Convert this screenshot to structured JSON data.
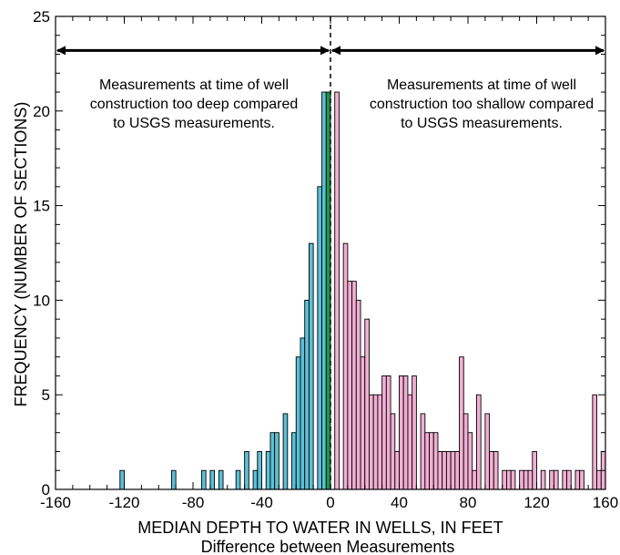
{
  "chart_data": {
    "type": "bar",
    "title": "",
    "xlabel": "MEDIAN DEPTH TO WATER IN WELLS, IN FEET",
    "xsublabel": "Difference between Measurements",
    "ylabel": "FREQUENCY (NUMBER OF SECTIONS)",
    "xlim": [
      -160,
      160
    ],
    "ylim": [
      0,
      25
    ],
    "xticks": [
      -160,
      -120,
      -80,
      -40,
      0,
      40,
      80,
      120,
      160
    ],
    "yticks": [
      0,
      5,
      10,
      15,
      20,
      25
    ],
    "bin_width": 2.5,
    "bar_edge_color": "#000000",
    "series": [
      {
        "color": "#5bc0d6",
        "bars": [
          {
            "x": -120,
            "y": 1
          },
          {
            "x": -90,
            "y": 1
          },
          {
            "x": -72.5,
            "y": 1
          },
          {
            "x": -67.5,
            "y": 1
          },
          {
            "x": -62.5,
            "y": 1
          },
          {
            "x": -52.5,
            "y": 1
          },
          {
            "x": -47.5,
            "y": 2
          },
          {
            "x": -42.5,
            "y": 1
          },
          {
            "x": -40,
            "y": 2
          },
          {
            "x": -35,
            "y": 2
          },
          {
            "x": -32.5,
            "y": 3
          },
          {
            "x": -30,
            "y": 3
          },
          {
            "x": -25,
            "y": 4
          },
          {
            "x": -20,
            "y": 3
          },
          {
            "x": -17.5,
            "y": 7
          },
          {
            "x": -15,
            "y": 8
          },
          {
            "x": -12.5,
            "y": 10
          },
          {
            "x": -10,
            "y": 13
          },
          {
            "x": -5,
            "y": 16
          },
          {
            "x": -2.5,
            "y": 21
          }
        ]
      },
      {
        "color": "#1a9a4a",
        "bars": [
          {
            "x": 0,
            "y": 21
          }
        ]
      },
      {
        "color": "#f2afd3",
        "bars": [
          {
            "x": 5,
            "y": 21
          },
          {
            "x": 10,
            "y": 13
          },
          {
            "x": 12.5,
            "y": 11
          },
          {
            "x": 15,
            "y": 11
          },
          {
            "x": 17.5,
            "y": 10
          },
          {
            "x": 20,
            "y": 7
          },
          {
            "x": 22.5,
            "y": 9
          },
          {
            "x": 25,
            "y": 5
          },
          {
            "x": 27.5,
            "y": 5
          },
          {
            "x": 30,
            "y": 5
          },
          {
            "x": 32.5,
            "y": 6
          },
          {
            "x": 35,
            "y": 6
          },
          {
            "x": 37.5,
            "y": 4
          },
          {
            "x": 40,
            "y": 2
          },
          {
            "x": 42.5,
            "y": 6
          },
          {
            "x": 45,
            "y": 6
          },
          {
            "x": 47.5,
            "y": 5
          },
          {
            "x": 50,
            "y": 6
          },
          {
            "x": 55,
            "y": 4
          },
          {
            "x": 57.5,
            "y": 3
          },
          {
            "x": 60,
            "y": 3
          },
          {
            "x": 62.5,
            "y": 3
          },
          {
            "x": 65,
            "y": 2
          },
          {
            "x": 67.5,
            "y": 2
          },
          {
            "x": 70,
            "y": 2
          },
          {
            "x": 72.5,
            "y": 2
          },
          {
            "x": 75,
            "y": 2
          },
          {
            "x": 77.5,
            "y": 7
          },
          {
            "x": 80,
            "y": 4
          },
          {
            "x": 82.5,
            "y": 3
          },
          {
            "x": 85,
            "y": 1
          },
          {
            "x": 87.5,
            "y": 5
          },
          {
            "x": 92.5,
            "y": 4
          },
          {
            "x": 95,
            "y": 2
          },
          {
            "x": 97.5,
            "y": 2
          },
          {
            "x": 102.5,
            "y": 1
          },
          {
            "x": 105,
            "y": 1
          },
          {
            "x": 107.5,
            "y": 1
          },
          {
            "x": 112.5,
            "y": 1
          },
          {
            "x": 115,
            "y": 1
          },
          {
            "x": 117.5,
            "y": 1
          },
          {
            "x": 120,
            "y": 2
          },
          {
            "x": 125,
            "y": 1
          },
          {
            "x": 130,
            "y": 1
          },
          {
            "x": 132.5,
            "y": 1
          },
          {
            "x": 137.5,
            "y": 1
          },
          {
            "x": 140,
            "y": 1
          },
          {
            "x": 145,
            "y": 1
          },
          {
            "x": 147.5,
            "y": 1
          },
          {
            "x": 155,
            "y": 5
          },
          {
            "x": 157.5,
            "y": 1
          },
          {
            "x": 160,
            "y": 2
          }
        ]
      }
    ],
    "reference_line": {
      "x": 0,
      "style": "dashed"
    },
    "annotations": {
      "left": {
        "arrow": {
          "from": -160,
          "to": 0,
          "y": 23.2
        },
        "lines": [
          "Measurements at time of well",
          "construction too deep compared",
          "to USGS measurements."
        ]
      },
      "right": {
        "arrow": {
          "from": 0,
          "to": 160,
          "y": 23.2
        },
        "lines": [
          "Measurements at time of well",
          "construction too shallow compared",
          "to USGS measurements."
        ]
      }
    }
  }
}
